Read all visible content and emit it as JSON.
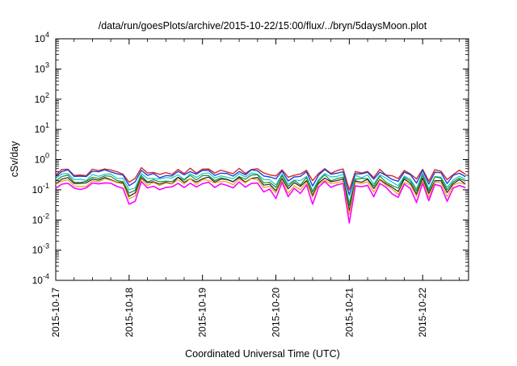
{
  "chart_data": {
    "type": "line",
    "title": "/data/run/goesPlots/archive/2015-10-22/15:00/flux/../bryn/5daysMoon.plot",
    "xlabel": "Coordinated Universal Time (UTC)",
    "ylabel": "cSv/day",
    "yscale": "log",
    "ylim": [
      0.0001,
      10000
    ],
    "y_ticks": [
      {
        "value": 0.0001,
        "base": "10",
        "exp": "-4"
      },
      {
        "value": 0.001,
        "base": "10",
        "exp": "-3"
      },
      {
        "value": 0.01,
        "base": "10",
        "exp": "-2"
      },
      {
        "value": 0.1,
        "base": "10",
        "exp": "-1"
      },
      {
        "value": 1,
        "base": "10",
        "exp": "0"
      },
      {
        "value": 10,
        "base": "10",
        "exp": "1"
      },
      {
        "value": 100,
        "base": "10",
        "exp": "2"
      },
      {
        "value": 1000,
        "base": "10",
        "exp": "3"
      },
      {
        "value": 10000,
        "base": "10",
        "exp": "4"
      }
    ],
    "xlim": [
      "2015-10-17",
      "2015-10-22T15:00"
    ],
    "x_ticks": [
      "2015-10-17",
      "2015-10-18",
      "2015-10-19",
      "2015-10-20",
      "2015-10-21",
      "2015-10-22"
    ],
    "grid": false,
    "legend": "none",
    "series_shape": {
      "step_hours": 2,
      "dips": [
        {
          "t": "2015-10-18T01:00",
          "depth": 0.6
        },
        {
          "t": "2015-10-19T20:00",
          "depth": 0.3
        },
        {
          "t": "2015-10-19T23:30",
          "depth": 0.5
        },
        {
          "t": "2015-10-20T04:00",
          "depth": 0.35
        },
        {
          "t": "2015-10-20T08:00",
          "depth": 0.3
        },
        {
          "t": "2015-10-20T11:30",
          "depth": 0.55
        },
        {
          "t": "2015-10-20T23:30",
          "depth": 0.35
        },
        {
          "t": "2015-10-21T00:30",
          "depth": 0.9
        },
        {
          "t": "2015-10-21T08:00",
          "depth": 0.3
        },
        {
          "t": "2015-10-21T15:00",
          "depth": 0.3
        },
        {
          "t": "2015-10-21T22:00",
          "depth": 0.6
        },
        {
          "t": "2015-10-22T02:00",
          "depth": 0.5
        },
        {
          "t": "2015-10-22T08:00",
          "depth": 0.4
        }
      ]
    },
    "series": [
      {
        "color": "#d62728",
        "base": 0.38,
        "dip_scale": 0.5,
        "width": 1.4
      },
      {
        "color": "#1f3fd6",
        "base": 0.33,
        "dip_scale": 0.6,
        "width": 1.4
      },
      {
        "color": "#19c4c4",
        "base": 0.26,
        "dip_scale": 0.7,
        "width": 1.2
      },
      {
        "color": "#1a8a2a",
        "base": 0.22,
        "dip_scale": 0.75,
        "width": 1.2
      },
      {
        "color": "#222222",
        "base": 0.19,
        "dip_scale": 0.8,
        "width": 1.2
      },
      {
        "color": "#e8a21a",
        "base": 0.165,
        "dip_scale": 0.85,
        "width": 1.2
      },
      {
        "color": "#ff00ff",
        "base": 0.13,
        "dip_scale": 1.0,
        "width": 1.6
      }
    ]
  }
}
